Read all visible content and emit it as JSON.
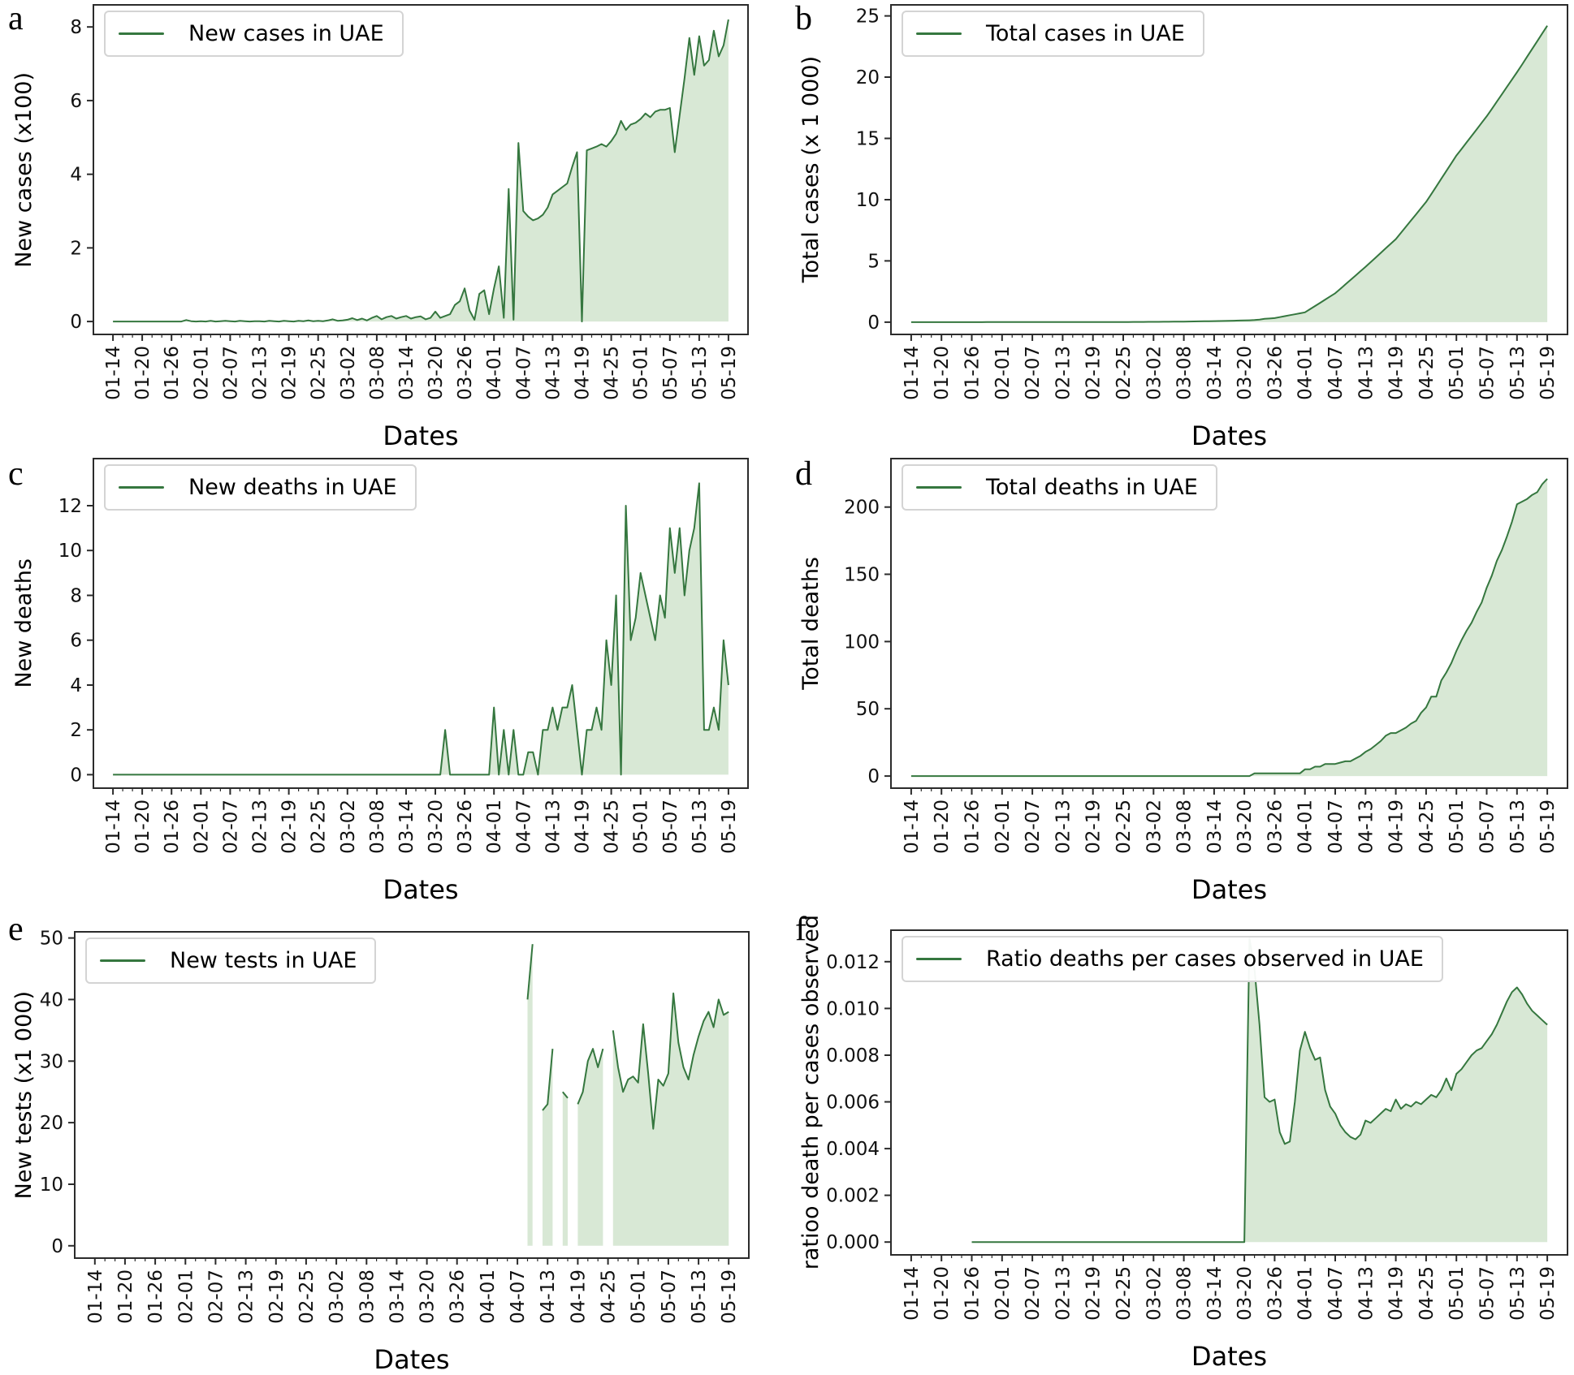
{
  "colors": {
    "line": "#35773f",
    "fill": "#d8e8d5",
    "spine": "#2b2b2b",
    "tick_text": "#111111"
  },
  "x_axis": {
    "label": "Dates",
    "tick_labels": [
      "01-14",
      "01-20",
      "01-26",
      "02-01",
      "02-07",
      "02-13",
      "02-19",
      "02-25",
      "03-02",
      "03-08",
      "03-14",
      "03-20",
      "03-26",
      "04-01",
      "04-07",
      "04-13",
      "04-19",
      "04-25",
      "05-01",
      "05-07",
      "05-13",
      "05-19"
    ]
  },
  "x_dates": [
    "01-14",
    "01-15",
    "01-16",
    "01-17",
    "01-18",
    "01-19",
    "01-20",
    "01-21",
    "01-22",
    "01-23",
    "01-24",
    "01-25",
    "01-26",
    "01-27",
    "01-28",
    "01-29",
    "01-30",
    "01-31",
    "02-01",
    "02-02",
    "02-03",
    "02-04",
    "02-05",
    "02-06",
    "02-07",
    "02-08",
    "02-09",
    "02-10",
    "02-11",
    "02-12",
    "02-13",
    "02-14",
    "02-15",
    "02-16",
    "02-17",
    "02-18",
    "02-19",
    "02-20",
    "02-21",
    "02-22",
    "02-23",
    "02-24",
    "02-25",
    "02-26",
    "02-27",
    "02-28",
    "02-29",
    "03-01",
    "03-02",
    "03-03",
    "03-04",
    "03-05",
    "03-06",
    "03-07",
    "03-08",
    "03-09",
    "03-10",
    "03-11",
    "03-12",
    "03-13",
    "03-14",
    "03-15",
    "03-16",
    "03-17",
    "03-18",
    "03-19",
    "03-20",
    "03-21",
    "03-22",
    "03-23",
    "03-24",
    "03-25",
    "03-26",
    "03-27",
    "03-28",
    "03-29",
    "03-30",
    "03-31",
    "04-01",
    "04-02",
    "04-03",
    "04-04",
    "04-05",
    "04-06",
    "04-07",
    "04-08",
    "04-09",
    "04-10",
    "04-11",
    "04-12",
    "04-13",
    "04-14",
    "04-15",
    "04-16",
    "04-17",
    "04-18",
    "04-19",
    "04-20",
    "04-21",
    "04-22",
    "04-23",
    "04-24",
    "04-25",
    "04-26",
    "04-27",
    "04-28",
    "04-29",
    "04-30",
    "05-01",
    "05-02",
    "05-03",
    "05-04",
    "05-05",
    "05-06",
    "05-07",
    "05-08",
    "05-09",
    "05-10",
    "05-11",
    "05-12",
    "05-13",
    "05-14",
    "05-15",
    "05-16",
    "05-17",
    "05-18",
    "05-19"
  ],
  "chart_data": [
    {
      "panel_label": "a",
      "type": "area",
      "legend": "New cases in UAE",
      "ylabel": "New cases (x100)",
      "xlabel": "Dates",
      "ytick_values": [
        0,
        2,
        4,
        6,
        8
      ],
      "ytick_labels": [
        "0",
        "2",
        "4",
        "6",
        "8"
      ],
      "ylim": [
        -0.35,
        8.6
      ],
      "values": [
        0,
        0,
        0,
        0,
        0,
        0,
        0,
        0,
        0,
        0,
        0,
        0,
        0,
        0,
        0,
        0.04,
        0.01,
        0,
        0.01,
        0,
        0.02,
        0,
        0.01,
        0.02,
        0.01,
        0,
        0.02,
        0.01,
        0,
        0.01,
        0.01,
        0,
        0.02,
        0.01,
        0,
        0.02,
        0.01,
        0,
        0.02,
        0.01,
        0.03,
        0.01,
        0.02,
        0.01,
        0.03,
        0.06,
        0.02,
        0.03,
        0.05,
        0.09,
        0.04,
        0.08,
        0.03,
        0.1,
        0.15,
        0.06,
        0.12,
        0.15,
        0.08,
        0.12,
        0.15,
        0.08,
        0.12,
        0.14,
        0.06,
        0.1,
        0.27,
        0.1,
        0.15,
        0.2,
        0.45,
        0.55,
        0.9,
        0.3,
        0.05,
        0.75,
        0.85,
        0.2,
        0.9,
        1.5,
        0.1,
        3.6,
        0.05,
        4.85,
        3.0,
        2.85,
        2.75,
        2.8,
        2.9,
        3.1,
        3.45,
        3.55,
        3.65,
        3.75,
        4.2,
        4.6,
        0,
        4.65,
        4.7,
        4.75,
        4.82,
        4.75,
        4.9,
        5.1,
        5.45,
        5.2,
        5.35,
        5.4,
        5.5,
        5.65,
        5.55,
        5.7,
        5.75,
        5.75,
        5.8,
        4.6,
        5.6,
        6.6,
        7.7,
        6.7,
        7.75,
        6.95,
        7.1,
        7.9,
        7.2,
        7.5,
        8.2
      ]
    },
    {
      "panel_label": "b",
      "type": "area",
      "legend": "Total cases in UAE",
      "ylabel": "Total cases (x 1 000)",
      "xlabel": "Dates",
      "ytick_values": [
        0,
        5,
        10,
        15,
        20,
        25
      ],
      "ytick_labels": [
        "0",
        "5",
        "10",
        "15",
        "20",
        "25"
      ],
      "ylim": [
        -1.0,
        25.9
      ],
      "values": [
        0,
        0,
        0,
        0,
        0,
        0,
        0,
        0,
        0,
        0,
        0,
        0,
        0,
        0,
        0,
        0.004,
        0.004,
        0.004,
        0.005,
        0.005,
        0.006,
        0.006,
        0.006,
        0.007,
        0.007,
        0.007,
        0.007,
        0.008,
        0.008,
        0.008,
        0.008,
        0.008,
        0.008,
        0.008,
        0.009,
        0.009,
        0.009,
        0.01,
        0.01,
        0.011,
        0.012,
        0.012,
        0.013,
        0.015,
        0.018,
        0.02,
        0.022,
        0.025,
        0.027,
        0.03,
        0.033,
        0.036,
        0.039,
        0.042,
        0.045,
        0.052,
        0.058,
        0.065,
        0.072,
        0.078,
        0.085,
        0.094,
        0.103,
        0.112,
        0.121,
        0.131,
        0.14,
        0.154,
        0.171,
        0.215,
        0.27,
        0.3,
        0.33,
        0.41,
        0.49,
        0.57,
        0.64,
        0.72,
        0.8,
        1.06,
        1.32,
        1.58,
        1.84,
        2.1,
        2.36,
        2.72,
        3.08,
        3.44,
        3.8,
        4.16,
        4.52,
        4.9,
        5.27,
        5.65,
        6.03,
        6.4,
        6.78,
        7.29,
        7.79,
        8.3,
        8.8,
        9.31,
        9.81,
        10.44,
        11.07,
        11.71,
        12.34,
        12.97,
        13.6,
        14.13,
        14.67,
        15.2,
        15.73,
        16.27,
        16.8,
        17.4,
        18.0,
        18.6,
        19.2,
        19.8,
        20.4,
        21.03,
        21.67,
        22.3,
        22.93,
        23.57,
        24.2
      ]
    },
    {
      "panel_label": "c",
      "type": "area",
      "legend": "New deaths in UAE",
      "ylabel": "New deaths",
      "xlabel": "Dates",
      "ytick_values": [
        0,
        2,
        4,
        6,
        8,
        10,
        12
      ],
      "ytick_labels": [
        "0",
        "2",
        "4",
        "6",
        "8",
        "10",
        "12"
      ],
      "ylim": [
        -0.6,
        14.1
      ],
      "values": [
        0,
        0,
        0,
        0,
        0,
        0,
        0,
        0,
        0,
        0,
        0,
        0,
        0,
        0,
        0,
        0,
        0,
        0,
        0,
        0,
        0,
        0,
        0,
        0,
        0,
        0,
        0,
        0,
        0,
        0,
        0,
        0,
        0,
        0,
        0,
        0,
        0,
        0,
        0,
        0,
        0,
        0,
        0,
        0,
        0,
        0,
        0,
        0,
        0,
        0,
        0,
        0,
        0,
        0,
        0,
        0,
        0,
        0,
        0,
        0,
        0,
        0,
        0,
        0,
        0,
        0,
        0,
        0,
        2,
        0,
        0,
        0,
        0,
        0,
        0,
        0,
        0,
        0,
        3,
        0,
        2,
        0,
        2,
        0,
        0,
        1,
        1,
        0,
        2,
        2,
        3,
        2,
        3,
        3,
        4,
        2,
        0,
        2,
        2,
        3,
        2,
        6,
        4,
        8,
        0,
        12,
        6,
        7,
        9,
        8,
        7,
        6,
        8,
        7,
        11,
        9,
        11,
        8,
        10,
        11,
        13,
        2,
        2,
        3,
        2,
        6,
        4
      ]
    },
    {
      "panel_label": "d",
      "type": "area",
      "legend": "Total deaths in UAE",
      "ylabel": "Total deaths",
      "xlabel": "Dates",
      "ytick_values": [
        0,
        50,
        100,
        150,
        200
      ],
      "ytick_labels": [
        "0",
        "50",
        "100",
        "150",
        "200"
      ],
      "ylim": [
        -9,
        236
      ],
      "values": [
        0,
        0,
        0,
        0,
        0,
        0,
        0,
        0,
        0,
        0,
        0,
        0,
        0,
        0,
        0,
        0,
        0,
        0,
        0,
        0,
        0,
        0,
        0,
        0,
        0,
        0,
        0,
        0,
        0,
        0,
        0,
        0,
        0,
        0,
        0,
        0,
        0,
        0,
        0,
        0,
        0,
        0,
        0,
        0,
        0,
        0,
        0,
        0,
        0,
        0,
        0,
        0,
        0,
        0,
        0,
        0,
        0,
        0,
        0,
        0,
        0,
        0,
        0,
        0,
        0,
        0,
        0,
        0,
        2,
        2,
        2,
        2,
        2,
        2,
        2,
        2,
        2,
        2,
        5,
        5,
        7,
        7,
        9,
        9,
        9,
        10,
        11,
        11,
        13,
        15,
        18,
        20,
        23,
        26,
        30,
        32,
        32,
        34,
        36,
        39,
        41,
        47,
        51,
        59,
        59,
        71,
        77,
        84,
        93,
        101,
        108,
        114,
        122,
        129,
        140,
        149,
        160,
        168,
        178,
        189,
        202,
        204,
        206,
        209,
        211,
        217,
        221
      ]
    },
    {
      "panel_label": "e",
      "type": "area",
      "legend": "New tests in UAE",
      "ylabel": "New tests (x1 000)",
      "xlabel": "Dates",
      "ytick_values": [
        0,
        10,
        20,
        30,
        40,
        50
      ],
      "ytick_labels": [
        "0",
        "10",
        "20",
        "30",
        "40",
        "50"
      ],
      "ylim": [
        -2,
        51
      ],
      "values": [
        null,
        null,
        null,
        null,
        null,
        null,
        null,
        null,
        null,
        null,
        null,
        null,
        null,
        null,
        null,
        null,
        null,
        null,
        null,
        null,
        null,
        null,
        null,
        null,
        null,
        null,
        null,
        null,
        null,
        null,
        null,
        null,
        null,
        null,
        null,
        null,
        null,
        null,
        null,
        null,
        null,
        null,
        null,
        null,
        null,
        null,
        null,
        null,
        null,
        null,
        null,
        null,
        null,
        null,
        null,
        null,
        null,
        null,
        null,
        null,
        null,
        null,
        null,
        null,
        null,
        null,
        null,
        null,
        null,
        null,
        null,
        null,
        null,
        null,
        null,
        null,
        null,
        null,
        null,
        null,
        null,
        null,
        null,
        null,
        null,
        null,
        40,
        49,
        null,
        22,
        23,
        32,
        null,
        25,
        24,
        null,
        23,
        25,
        30,
        32,
        29,
        32,
        null,
        35,
        29,
        25,
        27,
        27.5,
        26.5,
        36,
        28,
        19,
        27,
        26,
        28,
        41,
        33,
        29,
        27,
        31,
        34,
        36.5,
        38,
        35.5,
        40,
        37.5,
        38
      ]
    },
    {
      "panel_label": "f",
      "type": "area",
      "legend": "Ratio deaths per cases observed in UAE",
      "ylabel": "ratioo death per cases observed",
      "xlabel": "Dates",
      "ytick_values": [
        0,
        0.002,
        0.004,
        0.006,
        0.008,
        0.01,
        0.012
      ],
      "ytick_labels": [
        "0.000",
        "0.002",
        "0.004",
        "0.006",
        "0.008",
        "0.010",
        "0.012"
      ],
      "ylim": [
        -0.00055,
        0.01335
      ],
      "values": [
        null,
        null,
        null,
        null,
        null,
        null,
        null,
        null,
        null,
        null,
        null,
        null,
        0,
        0,
        0,
        0,
        0,
        0,
        0,
        0,
        0,
        0,
        0,
        0,
        0,
        0,
        0,
        0,
        0,
        0,
        0,
        0,
        0,
        0,
        0,
        0,
        0,
        0,
        0,
        0,
        0,
        0,
        0,
        0,
        0,
        0,
        0,
        0,
        0,
        0,
        0,
        0,
        0,
        0,
        0,
        0,
        0,
        0,
        0,
        0,
        0,
        0,
        0,
        0,
        0,
        0,
        0,
        0.013,
        0.0117,
        0.0093,
        0.0062,
        0.006,
        0.0061,
        0.0047,
        0.0042,
        0.0043,
        0.006,
        0.0082,
        0.009,
        0.0083,
        0.0078,
        0.0079,
        0.0065,
        0.0058,
        0.0055,
        0.005,
        0.0047,
        0.0045,
        0.0044,
        0.0046,
        0.0052,
        0.0051,
        0.0053,
        0.0055,
        0.0057,
        0.0056,
        0.0061,
        0.0057,
        0.0059,
        0.0058,
        0.006,
        0.0059,
        0.0061,
        0.0063,
        0.0062,
        0.0065,
        0.007,
        0.0065,
        0.0072,
        0.0074,
        0.0077,
        0.008,
        0.0082,
        0.0083,
        0.0086,
        0.0089,
        0.0093,
        0.0098,
        0.0103,
        0.0107,
        0.0109,
        0.0106,
        0.0102,
        0.0099,
        0.0097,
        0.0095,
        0.0093
      ]
    }
  ]
}
